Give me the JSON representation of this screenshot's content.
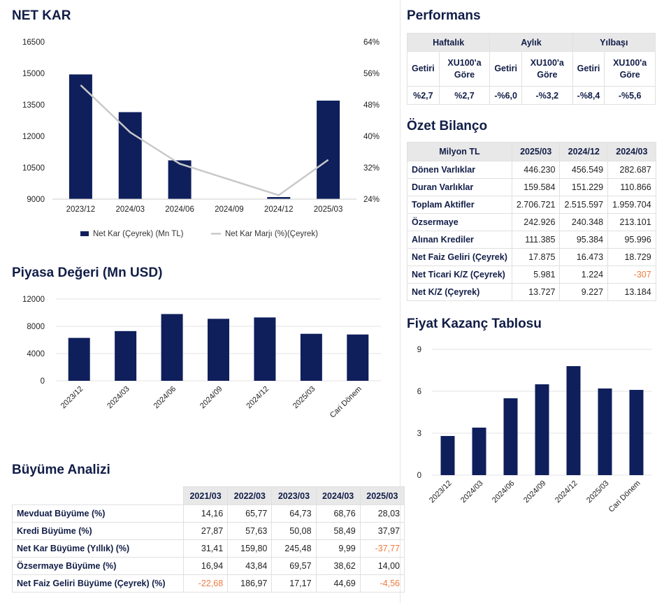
{
  "titles": {
    "net_kar": "NET KAR",
    "piyasa": "Piyasa Değeri (Mn USD)",
    "buyume": "Büyüme Analizi",
    "performans": "Performans",
    "bilanco": "Özet Bilanço",
    "fk": "Fiyat Kazanç Tablosu"
  },
  "colors": {
    "navy": "#0f1f5c",
    "line": "#c9c9c9",
    "negative": "#ef7b3f"
  },
  "chart_data": [
    {
      "type": "bar",
      "categories": [
        "2023/12",
        "2024/03",
        "2024/06",
        "2024/09",
        "2024/12",
        "2025/03"
      ],
      "series": [
        {
          "name": "Net Kar (Çeyrek) (Mn TL)",
          "values": [
            14950,
            13150,
            10850,
            9000,
            9100,
            13700
          ]
        },
        {
          "name": "Net Kar Marjı (%)(Çeyrek)",
          "type": "line",
          "values": [
            53,
            41,
            33,
            29,
            25,
            34
          ]
        }
      ],
      "ylim": [
        9000,
        16500
      ],
      "yticks": [
        "16500",
        "15000",
        "13500",
        "12000",
        "10500",
        "9000"
      ],
      "y2lim": [
        24,
        64
      ],
      "y2ticks": [
        "64%",
        "56%",
        "48%",
        "40%",
        "32%",
        "24%"
      ],
      "legend": "bottom"
    },
    {
      "type": "bar",
      "categories": [
        "2023/12",
        "2024/03",
        "2024/06",
        "2024/09",
        "2024/12",
        "2025/03",
        "Cari Dönem"
      ],
      "values": [
        6300,
        7300,
        9800,
        9100,
        9300,
        6900,
        6800
      ],
      "ylim": [
        0,
        12000
      ],
      "yticks": [
        "12000",
        "8000",
        "4000",
        "0"
      ]
    },
    {
      "type": "bar",
      "categories": [
        "2023/12",
        "2024/03",
        "2024/06",
        "2024/09",
        "2024/12",
        "2025/03",
        "Cari Dönem"
      ],
      "values": [
        2.8,
        3.4,
        5.5,
        6.5,
        7.8,
        6.2,
        6.1
      ],
      "ylim": [
        0,
        9
      ],
      "yticks": [
        "9",
        "6",
        "3",
        "0"
      ]
    }
  ],
  "buyume_table": {
    "headers": [
      "",
      "2021/03",
      "2022/03",
      "2023/03",
      "2024/03",
      "2025/03"
    ],
    "rows": [
      {
        "label": "Mevduat Büyüme (%)",
        "values": [
          "14,16",
          "65,77",
          "64,73",
          "68,76",
          "28,03"
        ]
      },
      {
        "label": "Kredi Büyüme (%)",
        "values": [
          "27,87",
          "57,63",
          "50,08",
          "58,49",
          "37,97"
        ]
      },
      {
        "label": "Net Kar Büyüme (Yıllık) (%)",
        "values": [
          "31,41",
          "159,80",
          "245,48",
          "9,99",
          "-37,77"
        ]
      },
      {
        "label": "Özsermaye Büyüme (%)",
        "values": [
          "16,94",
          "43,84",
          "69,57",
          "38,62",
          "14,00"
        ]
      },
      {
        "label": "Net Faiz Geliri Büyüme (Çeyrek) (%)",
        "values": [
          "-22,68",
          "186,97",
          "17,17",
          "44,69",
          "-4,56"
        ]
      }
    ]
  },
  "performans": {
    "groups": [
      "Haftalık",
      "Aylık",
      "Yılbaşı"
    ],
    "subheaders": [
      "Getiri",
      "XU100'a Göre",
      "Getiri",
      "XU100'a Göre",
      "Getiri",
      "XU100'a Göre"
    ],
    "values": [
      "%2,7",
      "%2,7",
      "-%6,0",
      "-%3,2",
      "-%8,4",
      "-%5,6"
    ]
  },
  "bilanco": {
    "headers": [
      "Milyon TL",
      "2025/03",
      "2024/12",
      "2024/03"
    ],
    "rows": [
      {
        "label": "Dönen Varlıklar",
        "values": [
          "446.230",
          "456.549",
          "282.687"
        ]
      },
      {
        "label": "Duran Varlıklar",
        "values": [
          "159.584",
          "151.229",
          "110.866"
        ]
      },
      {
        "label": "Toplam Aktifler",
        "values": [
          "2.706.721",
          "2.515.597",
          "1.959.704"
        ]
      },
      {
        "label": "Özsermaye",
        "values": [
          "242.926",
          "240.348",
          "213.101"
        ]
      },
      {
        "label": "Alınan Krediler",
        "values": [
          "111.385",
          "95.384",
          "95.996"
        ]
      },
      {
        "label": "Net Faiz Geliri (Çeyrek)",
        "values": [
          "17.875",
          "16.473",
          "18.729"
        ]
      },
      {
        "label": "Net Ticari K/Z (Çeyrek)",
        "values": [
          "5.981",
          "1.224",
          "-307"
        ]
      },
      {
        "label": "Net K/Z (Çeyrek)",
        "values": [
          "13.727",
          "9.227",
          "13.184"
        ]
      }
    ]
  }
}
